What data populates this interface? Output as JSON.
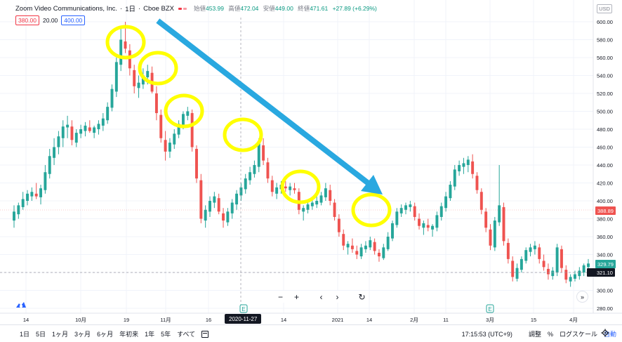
{
  "header": {
    "symbol": "Zoom Video Communications, Inc.",
    "interval": "1日",
    "exchange": "Cboe BZX",
    "ohlc": {
      "open_label": "始値",
      "open": "453.99",
      "high_label": "高値",
      "high": "472.04",
      "low_label": "安値",
      "low": "449.00",
      "close_label": "終値",
      "close": "471.61",
      "change": "+27.89 (+6.29%)"
    }
  },
  "indicator": {
    "sell": "380.00",
    "spread": "20.00",
    "buy": "400.00"
  },
  "currency": "USD",
  "price_axis": {
    "ticks": [
      "600.00",
      "580.00",
      "560.00",
      "540.00",
      "520.00",
      "500.00",
      "480.00",
      "460.00",
      "440.00",
      "420.00",
      "400.00",
      "380.00",
      "360.00",
      "340.00",
      "320.00",
      "300.00",
      "280.00"
    ],
    "tags": {
      "red_value": "388.89",
      "green_value": "329.79",
      "cursor_value": "321.10"
    }
  },
  "time_axis": {
    "ticks": [
      "14",
      "10月",
      "19",
      "11月",
      "16",
      "14",
      "2021",
      "14",
      "2月",
      "11",
      "3月",
      "15",
      "4月"
    ],
    "cursor_date": "2020-11-27"
  },
  "nav": {
    "zoom_out": "−",
    "zoom_in": "+",
    "left": "‹",
    "right": "›",
    "reset": "↻"
  },
  "bottom_bar": {
    "ranges": [
      "1日",
      "5日",
      "1ヶ月",
      "3ヶ月",
      "6ヶ月",
      "年初来",
      "1年",
      "5年",
      "すべて"
    ],
    "time": "17:15:53 (UTC+9)",
    "adjust": "調整",
    "percent": "%",
    "log": "ログスケール",
    "auto": "自動"
  },
  "colors": {
    "up": "#26a69a",
    "down": "#ef5350",
    "highlight": "#ffff00",
    "arrow": "#29a8e0",
    "cursor_tag": "#131722"
  },
  "icons": {
    "logo": "tradingview-logo-icon",
    "settings": "gear-icon",
    "calendar": "calendar-icon",
    "earnings": "earnings-e-icon",
    "scroll": "scroll-right-icon"
  },
  "chart_data": {
    "type": "candlestick",
    "ylim": [
      275,
      610
    ],
    "candles": [
      [
        378,
        395,
        370,
        388
      ],
      [
        385,
        398,
        380,
        395
      ],
      [
        393,
        410,
        390,
        402
      ],
      [
        400,
        412,
        395,
        408
      ],
      [
        405,
        415,
        400,
        410
      ],
      [
        408,
        420,
        402,
        405
      ],
      [
        404,
        418,
        396,
        414
      ],
      [
        412,
        440,
        408,
        432
      ],
      [
        430,
        458,
        425,
        450
      ],
      [
        448,
        470,
        440,
        460
      ],
      [
        460,
        478,
        452,
        472
      ],
      [
        470,
        490,
        460,
        483
      ],
      [
        482,
        495,
        470,
        485
      ],
      [
        483,
        490,
        462,
        468
      ],
      [
        465,
        480,
        460,
        476
      ],
      [
        475,
        485,
        470,
        480
      ],
      [
        478,
        488,
        472,
        484
      ],
      [
        482,
        490,
        476,
        478
      ],
      [
        476,
        484,
        470,
        482
      ],
      [
        480,
        490,
        474,
        486
      ],
      [
        484,
        498,
        478,
        492
      ],
      [
        490,
        510,
        486,
        505
      ],
      [
        504,
        530,
        500,
        525
      ],
      [
        522,
        560,
        516,
        555
      ],
      [
        552,
        592,
        545,
        580
      ],
      [
        578,
        600,
        565,
        570
      ],
      [
        568,
        575,
        540,
        548
      ],
      [
        546,
        552,
        520,
        528
      ],
      [
        526,
        540,
        515,
        532
      ],
      [
        530,
        548,
        525,
        540
      ],
      [
        538,
        552,
        530,
        545
      ],
      [
        543,
        550,
        520,
        522
      ],
      [
        520,
        528,
        490,
        498
      ],
      [
        496,
        502,
        465,
        470
      ],
      [
        468,
        478,
        445,
        455
      ],
      [
        455,
        470,
        448,
        465
      ],
      [
        463,
        480,
        458,
        475
      ],
      [
        474,
        490,
        470,
        486
      ],
      [
        484,
        500,
        480,
        497
      ],
      [
        495,
        505,
        490,
        500
      ],
      [
        498,
        502,
        455,
        460
      ],
      [
        458,
        462,
        420,
        425
      ],
      [
        423,
        430,
        375,
        380
      ],
      [
        378,
        395,
        370,
        390
      ],
      [
        388,
        405,
        382,
        400
      ],
      [
        398,
        410,
        392,
        405
      ],
      [
        403,
        408,
        385,
        388
      ],
      [
        386,
        392,
        370,
        378
      ],
      [
        376,
        392,
        372,
        388
      ],
      [
        386,
        402,
        380,
        398
      ],
      [
        396,
        412,
        390,
        408
      ],
      [
        406,
        420,
        400,
        415
      ],
      [
        413,
        430,
        408,
        425
      ],
      [
        423,
        438,
        418,
        432
      ],
      [
        430,
        445,
        426,
        440
      ],
      [
        438,
        470,
        432,
        465
      ],
      [
        462,
        470,
        440,
        445
      ],
      [
        443,
        448,
        420,
        425
      ],
      [
        423,
        428,
        405,
        410
      ],
      [
        408,
        420,
        402,
        415
      ],
      [
        413,
        422,
        408,
        418
      ],
      [
        416,
        422,
        410,
        414
      ],
      [
        412,
        420,
        406,
        416
      ],
      [
        414,
        420,
        408,
        412
      ],
      [
        410,
        414,
        385,
        390
      ],
      [
        388,
        395,
        378,
        392
      ],
      [
        390,
        400,
        386,
        396
      ],
      [
        394,
        402,
        390,
        398
      ],
      [
        396,
        405,
        392,
        400
      ],
      [
        398,
        410,
        395,
        406
      ],
      [
        404,
        420,
        400,
        414
      ],
      [
        412,
        418,
        395,
        400
      ],
      [
        398,
        402,
        378,
        382
      ],
      [
        380,
        385,
        360,
        365
      ],
      [
        363,
        368,
        345,
        350
      ],
      [
        348,
        355,
        340,
        352
      ],
      [
        350,
        358,
        342,
        346
      ],
      [
        344,
        350,
        335,
        340
      ],
      [
        338,
        352,
        335,
        348
      ],
      [
        346,
        355,
        342,
        350
      ],
      [
        348,
        360,
        345,
        356
      ],
      [
        354,
        358,
        340,
        344
      ],
      [
        342,
        346,
        332,
        338
      ],
      [
        336,
        352,
        334,
        348
      ],
      [
        346,
        365,
        344,
        360
      ],
      [
        358,
        378,
        355,
        375
      ],
      [
        373,
        392,
        370,
        388
      ],
      [
        386,
        396,
        382,
        392
      ],
      [
        390,
        398,
        385,
        395
      ],
      [
        393,
        400,
        388,
        396
      ],
      [
        394,
        398,
        378,
        382
      ],
      [
        380,
        386,
        368,
        372
      ],
      [
        370,
        378,
        362,
        375
      ],
      [
        373,
        380,
        366,
        370
      ],
      [
        368,
        374,
        360,
        372
      ],
      [
        370,
        388,
        366,
        384
      ],
      [
        382,
        398,
        378,
        394
      ],
      [
        392,
        410,
        388,
        405
      ],
      [
        403,
        422,
        400,
        418
      ],
      [
        416,
        440,
        412,
        435
      ],
      [
        433,
        445,
        428,
        440
      ],
      [
        438,
        448,
        430,
        442
      ],
      [
        440,
        450,
        432,
        446
      ],
      [
        444,
        452,
        425,
        430
      ],
      [
        428,
        432,
        408,
        412
      ],
      [
        410,
        414,
        385,
        390
      ],
      [
        388,
        392,
        365,
        370
      ],
      [
        368,
        374,
        345,
        350
      ],
      [
        348,
        382,
        344,
        378
      ],
      [
        376,
        440,
        372,
        395
      ],
      [
        393,
        398,
        350,
        355
      ],
      [
        353,
        358,
        330,
        335
      ],
      [
        333,
        338,
        310,
        315
      ],
      [
        313,
        330,
        310,
        325
      ],
      [
        323,
        338,
        320,
        335
      ],
      [
        333,
        348,
        330,
        345
      ],
      [
        343,
        352,
        338,
        348
      ],
      [
        346,
        355,
        340,
        350
      ],
      [
        348,
        352,
        330,
        335
      ],
      [
        333,
        340,
        322,
        326
      ],
      [
        324,
        330,
        312,
        318
      ],
      [
        316,
        326,
        312,
        322
      ],
      [
        320,
        352,
        316,
        348
      ],
      [
        346,
        350,
        320,
        325
      ],
      [
        323,
        328,
        308,
        312
      ],
      [
        310,
        318,
        304,
        315
      ],
      [
        313,
        322,
        310,
        318
      ],
      [
        316,
        326,
        312,
        322
      ],
      [
        320,
        330,
        316,
        328
      ],
      [
        326,
        335,
        322,
        330
      ]
    ]
  }
}
